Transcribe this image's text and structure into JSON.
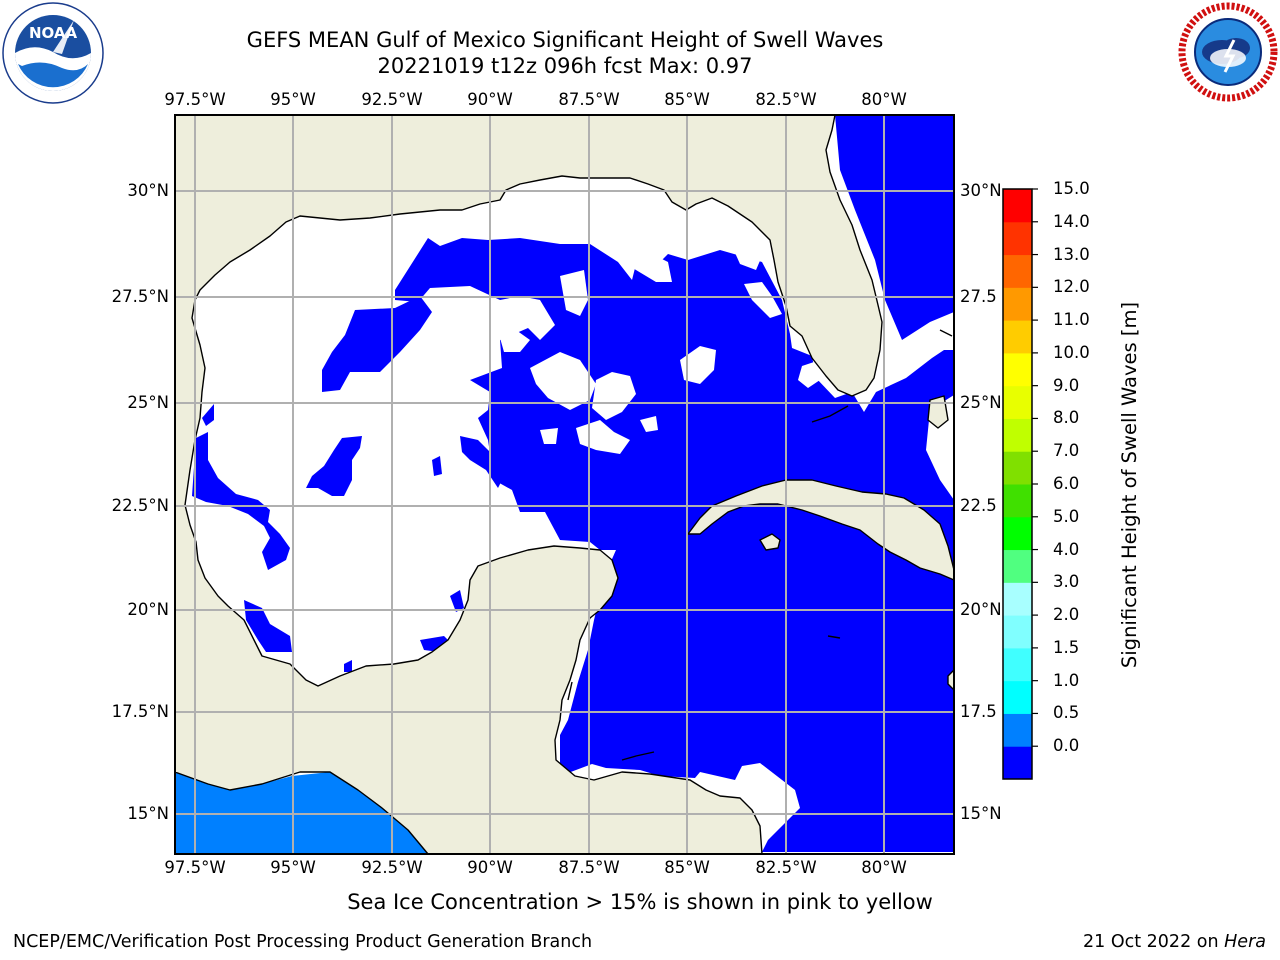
{
  "title_line1": "GEFS MEAN Gulf of Mexico Significant Height of Swell Waves",
  "title_line2": "20221019 t12z 096h fcst   Max: 0.97",
  "longitude_labels": [
    "97.5°W",
    "95°W",
    "92.5°W",
    "90°W",
    "87.5°W",
    "85°W",
    "82.5°W",
    "80°W"
  ],
  "latitude_labels_left": [
    "30°N",
    "27.5°N",
    "25°N",
    "22.5°N",
    "20°N",
    "17.5°N",
    "15°N"
  ],
  "latitude_labels_right": [
    "30°N",
    "27.5",
    "25°N",
    "22.5",
    "20°N",
    "17.5",
    "15°N"
  ],
  "map_extent": {
    "lon_min": -98,
    "lon_max": -78.2,
    "lat_min": 14.0,
    "lat_max": 31.8
  },
  "colorbar": {
    "label": "Significant Height of Swell Waves [m]",
    "ticks": [
      "15.0",
      "14.0",
      "13.0",
      "12.0",
      "11.0",
      "10.0",
      "9.0",
      "8.0",
      "7.0",
      "6.0",
      "5.0",
      "4.0",
      "3.0",
      "2.0",
      "1.5",
      "1.0",
      "0.5",
      "0.0"
    ],
    "colors": [
      "#0000ff",
      "#0080ff",
      "#00ffff",
      "#40ffff",
      "#80ffff",
      "#a8ffff",
      "#50ff80",
      "#00ff00",
      "#40e000",
      "#80e000",
      "#c0ff00",
      "#e8ff00",
      "#ffff00",
      "#ffcc00",
      "#ff9900",
      "#ff6600",
      "#ff3300",
      "#ff0000"
    ]
  },
  "colors": {
    "land": "#eeeedc",
    "swell_0_0p5": "#0000ff",
    "swell_0p5_1p0": "#0080ff",
    "ocean_no_data": "#ffffff",
    "grid": "#b0b0b0"
  },
  "footnote": "Sea Ice Concentration > 15% is shown in pink to yellow",
  "credit_left": "NCEP/EMC/Verification Post Processing Product Generation Branch",
  "credit_right_date": "21 Oct 2022 on ",
  "credit_right_host": "Hera",
  "logos": {
    "noaa_text": "NOAA",
    "noaa_ring": "NATIONAL OCEANIC AND ATMOSPHERIC ADMINISTRATION · U.S. DEPARTMENT OF COMMERCE",
    "nws_ring": "NATIONAL WEATHER SERVICE"
  }
}
